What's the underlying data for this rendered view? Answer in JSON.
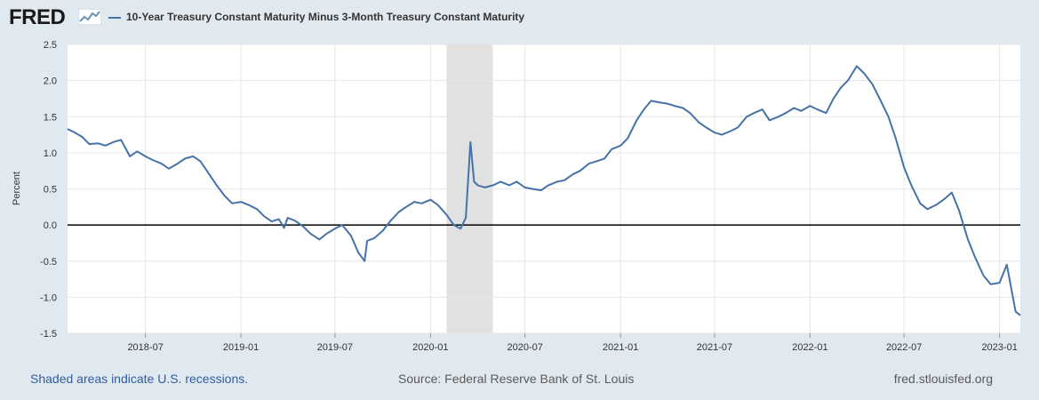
{
  "header": {
    "logo_text": "FRED",
    "legend_label": "10-Year Treasury Constant Maturity Minus 3-Month Treasury Constant Maturity"
  },
  "footer": {
    "note": "Shaded areas indicate U.S. recessions.",
    "source": "Source: Federal Reserve Bank of St. Louis",
    "url": "fred.stlouisfed.org"
  },
  "colors": {
    "series": "#4572a7",
    "recession": "#e1e1e1",
    "zero_line": "#000000",
    "background": "#e1e9f0",
    "plot": "#ffffff"
  },
  "chart_data": {
    "type": "line",
    "title": "",
    "xlabel": "",
    "ylabel": "Percent",
    "ylim": [
      -1.5,
      2.5
    ],
    "yticks": [
      "2.5",
      "2.0",
      "1.5",
      "1.0",
      "0.5",
      "0.0",
      "-0.5",
      "-1.0",
      "-1.5"
    ],
    "xlim": [
      "2018-02-01",
      "2023-02-10"
    ],
    "xticks": [
      "2018-07",
      "2019-01",
      "2019-07",
      "2020-01",
      "2020-07",
      "2021-01",
      "2021-07",
      "2022-01",
      "2022-07",
      "2023-01"
    ],
    "recessions": [
      {
        "start": "2020-02-01",
        "end": "2020-04-30"
      }
    ],
    "grid": true,
    "reference_line": 0,
    "series": [
      {
        "name": "10-Year Treasury Constant Maturity Minus 3-Month Treasury Constant Maturity",
        "x": [
          "2018-02-01",
          "2018-02-15",
          "2018-03-01",
          "2018-03-15",
          "2018-04-01",
          "2018-04-15",
          "2018-05-01",
          "2018-05-15",
          "2018-06-01",
          "2018-06-15",
          "2018-07-01",
          "2018-07-15",
          "2018-08-01",
          "2018-08-15",
          "2018-09-01",
          "2018-09-15",
          "2018-10-01",
          "2018-10-15",
          "2018-11-01",
          "2018-11-15",
          "2018-12-01",
          "2018-12-15",
          "2019-01-01",
          "2019-01-15",
          "2019-02-01",
          "2019-02-15",
          "2019-03-01",
          "2019-03-15",
          "2019-03-25",
          "2019-04-01",
          "2019-04-15",
          "2019-05-01",
          "2019-05-15",
          "2019-06-01",
          "2019-06-15",
          "2019-07-01",
          "2019-07-15",
          "2019-08-01",
          "2019-08-15",
          "2019-08-27",
          "2019-09-01",
          "2019-09-15",
          "2019-10-01",
          "2019-10-15",
          "2019-11-01",
          "2019-11-15",
          "2019-12-01",
          "2019-12-15",
          "2020-01-01",
          "2020-01-15",
          "2020-01-31",
          "2020-02-15",
          "2020-02-28",
          "2020-03-09",
          "2020-03-18",
          "2020-03-25",
          "2020-04-01",
          "2020-04-15",
          "2020-05-01",
          "2020-05-15",
          "2020-06-01",
          "2020-06-15",
          "2020-07-01",
          "2020-07-15",
          "2020-08-01",
          "2020-08-15",
          "2020-09-01",
          "2020-09-15",
          "2020-10-01",
          "2020-10-15",
          "2020-11-01",
          "2020-11-15",
          "2020-12-01",
          "2020-12-15",
          "2021-01-01",
          "2021-01-15",
          "2021-02-01",
          "2021-02-15",
          "2021-03-01",
          "2021-03-15",
          "2021-04-01",
          "2021-04-15",
          "2021-05-01",
          "2021-05-15",
          "2021-06-01",
          "2021-06-15",
          "2021-07-01",
          "2021-07-15",
          "2021-08-01",
          "2021-08-15",
          "2021-09-01",
          "2021-09-15",
          "2021-10-01",
          "2021-10-15",
          "2021-11-01",
          "2021-11-15",
          "2021-12-01",
          "2021-12-15",
          "2022-01-01",
          "2022-01-15",
          "2022-02-01",
          "2022-02-15",
          "2022-03-01",
          "2022-03-15",
          "2022-04-01",
          "2022-04-15",
          "2022-05-01",
          "2022-05-15",
          "2022-06-01",
          "2022-06-15",
          "2022-07-01",
          "2022-07-15",
          "2022-08-01",
          "2022-08-15",
          "2022-09-01",
          "2022-09-15",
          "2022-10-01",
          "2022-10-15",
          "2022-11-01",
          "2022-11-15",
          "2022-12-01",
          "2022-12-15",
          "2023-01-01",
          "2023-01-15",
          "2023-02-01",
          "2023-02-10"
        ],
        "values": [
          1.33,
          1.28,
          1.22,
          1.12,
          1.13,
          1.1,
          1.15,
          1.18,
          0.95,
          1.02,
          0.95,
          0.9,
          0.85,
          0.78,
          0.85,
          0.92,
          0.95,
          0.88,
          0.7,
          0.55,
          0.4,
          0.3,
          0.32,
          0.28,
          0.22,
          0.12,
          0.05,
          0.08,
          -0.04,
          0.1,
          0.06,
          -0.02,
          -0.12,
          -0.2,
          -0.12,
          -0.05,
          0.0,
          -0.15,
          -0.38,
          -0.5,
          -0.22,
          -0.18,
          -0.08,
          0.05,
          0.18,
          0.25,
          0.32,
          0.3,
          0.35,
          0.28,
          0.15,
          0.0,
          -0.05,
          0.1,
          1.15,
          0.6,
          0.55,
          0.52,
          0.55,
          0.6,
          0.55,
          0.6,
          0.52,
          0.5,
          0.48,
          0.55,
          0.6,
          0.62,
          0.7,
          0.75,
          0.85,
          0.88,
          0.92,
          1.05,
          1.1,
          1.2,
          1.45,
          1.6,
          1.72,
          1.7,
          1.68,
          1.65,
          1.62,
          1.55,
          1.42,
          1.35,
          1.28,
          1.25,
          1.3,
          1.35,
          1.5,
          1.55,
          1.6,
          1.45,
          1.5,
          1.55,
          1.62,
          1.58,
          1.65,
          1.6,
          1.55,
          1.75,
          1.9,
          2.0,
          2.2,
          2.1,
          1.95,
          1.75,
          1.5,
          1.2,
          0.8,
          0.55,
          0.3,
          0.22,
          0.28,
          0.35,
          0.45,
          0.2,
          -0.2,
          -0.45,
          -0.7,
          -0.82,
          -0.8,
          -0.55,
          -1.2,
          -1.25
        ]
      }
    ]
  }
}
